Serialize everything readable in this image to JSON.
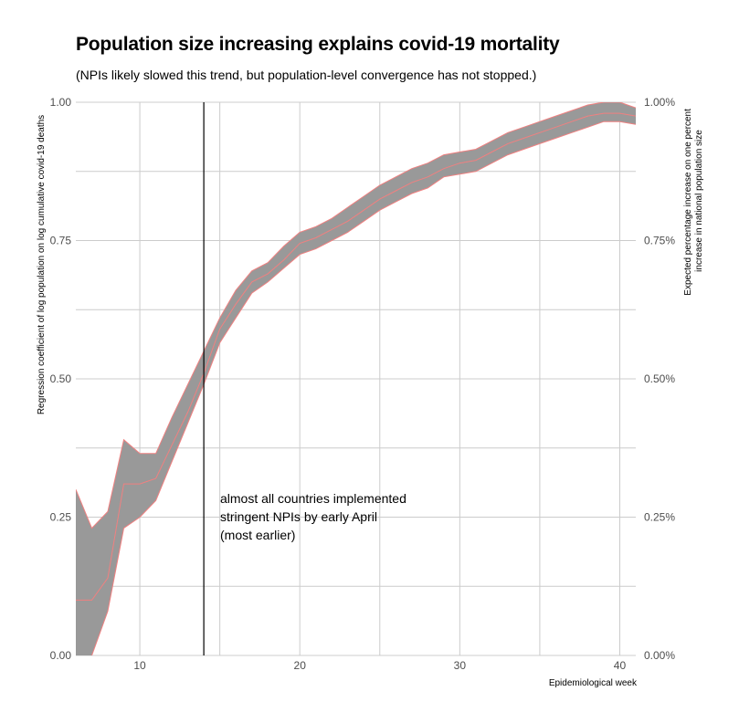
{
  "chart_data": {
    "type": "area",
    "title": "Population size increasing explains covid-19 mortality",
    "subtitle": "(NPIs likely slowed this trend, but population-level convergence has not stopped.)",
    "xlabel": "Epidemiological week",
    "ylabel": "Regression coefficient of log population on log cumulative covid-19 deaths",
    "y2label_lines": [
      "Expected percentage increase on one percent",
      "increase in national population size"
    ],
    "xlim": [
      6,
      41
    ],
    "ylim": [
      0,
      1
    ],
    "x_ticks": [
      "10",
      "20",
      "30",
      "40"
    ],
    "x_tick_values": [
      10,
      20,
      30,
      40
    ],
    "y_ticks": [
      "0.00",
      "0.25",
      "0.50",
      "0.75",
      "1.00"
    ],
    "y_tick_values": [
      0,
      0.25,
      0.5,
      0.75,
      1.0
    ],
    "y2_ticks": [
      "0.00%",
      "0.25%",
      "0.50%",
      "0.75%",
      "1.00%"
    ],
    "grid": true,
    "vline_x": 14,
    "annotation_lines": [
      "almost all countries implemented",
      "stringent NPIs by early April",
      "(most earlier)"
    ],
    "series": [
      {
        "name": "upper",
        "x": [
          6,
          7,
          8,
          9,
          10,
          11,
          12,
          13,
          14,
          15,
          16,
          17,
          18,
          19,
          20,
          21,
          22,
          23,
          24,
          25,
          26,
          27,
          28,
          29,
          30,
          31,
          32,
          33,
          34,
          35,
          36,
          37,
          38,
          39,
          40,
          41
        ],
        "values": [
          0.3,
          0.23,
          0.26,
          0.39,
          0.365,
          0.365,
          0.43,
          0.49,
          0.55,
          0.61,
          0.66,
          0.695,
          0.71,
          0.74,
          0.765,
          0.775,
          0.79,
          0.81,
          0.83,
          0.85,
          0.865,
          0.88,
          0.89,
          0.905,
          0.91,
          0.915,
          0.93,
          0.945,
          0.955,
          0.965,
          0.975,
          0.985,
          0.995,
          1.0,
          1.0,
          0.99
        ]
      },
      {
        "name": "estimate",
        "x": [
          6,
          7,
          8,
          9,
          10,
          11,
          12,
          13,
          14,
          15,
          16,
          17,
          18,
          19,
          20,
          21,
          22,
          23,
          24,
          25,
          26,
          27,
          28,
          29,
          30,
          31,
          32,
          33,
          34,
          35,
          36,
          37,
          38,
          39,
          40,
          41
        ],
        "values": [
          0.1,
          0.1,
          0.14,
          0.31,
          0.31,
          0.32,
          0.38,
          0.44,
          0.51,
          0.59,
          0.635,
          0.675,
          0.69,
          0.715,
          0.745,
          0.755,
          0.77,
          0.785,
          0.805,
          0.825,
          0.84,
          0.855,
          0.865,
          0.88,
          0.89,
          0.895,
          0.91,
          0.925,
          0.935,
          0.945,
          0.955,
          0.965,
          0.975,
          0.98,
          0.98,
          0.975
        ]
      },
      {
        "name": "lower",
        "x": [
          6,
          7,
          8,
          9,
          10,
          11,
          12,
          13,
          14,
          15,
          16,
          17,
          18,
          19,
          20,
          21,
          22,
          23,
          24,
          25,
          26,
          27,
          28,
          29,
          30,
          31,
          32,
          33,
          34,
          35,
          36,
          37,
          38,
          39,
          40,
          41
        ],
        "values": [
          -0.06,
          0.0,
          0.08,
          0.23,
          0.25,
          0.28,
          0.35,
          0.42,
          0.49,
          0.565,
          0.61,
          0.655,
          0.675,
          0.7,
          0.725,
          0.735,
          0.75,
          0.765,
          0.785,
          0.805,
          0.82,
          0.835,
          0.845,
          0.865,
          0.87,
          0.875,
          0.89,
          0.905,
          0.915,
          0.925,
          0.935,
          0.945,
          0.955,
          0.965,
          0.965,
          0.96
        ]
      }
    ],
    "band_color": "#999999",
    "line_color": "#f08080",
    "vline_color": "#000000",
    "grid_color": "#cccccc"
  }
}
